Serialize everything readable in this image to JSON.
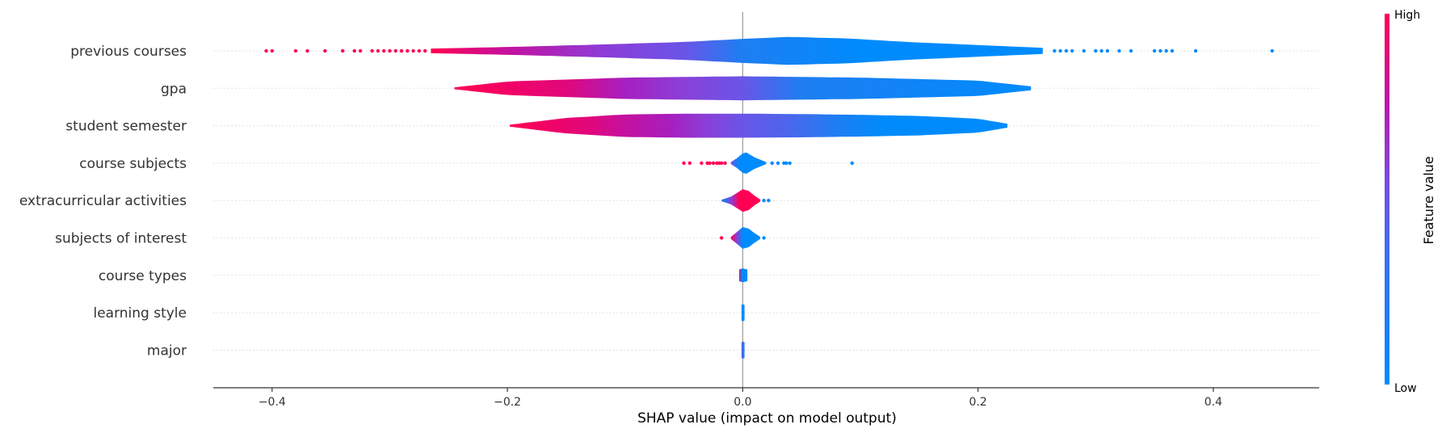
{
  "chart_data": {
    "type": "violin",
    "xlabel": "SHAP value (impact on model output)",
    "xlim": [
      -0.45,
      0.49
    ],
    "ticks": [
      {
        "value": -0.4,
        "label": "−0.4"
      },
      {
        "value": -0.2,
        "label": "−0.2"
      },
      {
        "value": 0.0,
        "label": "0.0"
      },
      {
        "value": 0.2,
        "label": "0.2"
      },
      {
        "value": 0.4,
        "label": "0.4"
      }
    ],
    "features": [
      {
        "name": "previous courses",
        "range": [
          -0.265,
          0.255
        ],
        "profile": [
          [
            -0.265,
            0.12
          ],
          [
            -0.2,
            0.2
          ],
          [
            -0.12,
            0.33
          ],
          [
            -0.05,
            0.46
          ],
          [
            0.0,
            0.62
          ],
          [
            0.04,
            0.72
          ],
          [
            0.09,
            0.64
          ],
          [
            0.14,
            0.46
          ],
          [
            0.2,
            0.3
          ],
          [
            0.255,
            0.16
          ]
        ],
        "colors": [
          [
            -0.265,
            "#ff0052"
          ],
          [
            -0.2,
            "#c4119f"
          ],
          [
            -0.12,
            "#8e3bd6"
          ],
          [
            -0.05,
            "#6a55e8"
          ],
          [
            0.0,
            "#1e7ef2"
          ],
          [
            0.1,
            "#008bfc"
          ],
          [
            0.255,
            "#008bfc"
          ]
        ],
        "outliers_low": [
          -0.405,
          -0.4,
          -0.38,
          -0.37,
          -0.355,
          -0.34,
          -0.33,
          -0.325,
          -0.315,
          -0.31,
          -0.305,
          -0.3,
          -0.295,
          -0.29,
          -0.285,
          -0.28,
          -0.275,
          -0.27
        ],
        "outliers_high": [
          0.265,
          0.27,
          0.275,
          0.28,
          0.29,
          0.3,
          0.305,
          0.31,
          0.32,
          0.33,
          0.35,
          0.355,
          0.36,
          0.365,
          0.385,
          0.45
        ]
      },
      {
        "name": "gpa",
        "range": [
          -0.245,
          0.245
        ],
        "profile": [
          [
            -0.245,
            0.05
          ],
          [
            -0.2,
            0.35
          ],
          [
            -0.1,
            0.55
          ],
          [
            0.0,
            0.62
          ],
          [
            0.1,
            0.55
          ],
          [
            0.2,
            0.4
          ],
          [
            0.245,
            0.1
          ]
        ],
        "colors": [
          [
            -0.245,
            "#ff0052"
          ],
          [
            -0.15,
            "#e1077c"
          ],
          [
            -0.1,
            "#a61fc0"
          ],
          [
            -0.05,
            "#8a40d8"
          ],
          [
            0.0,
            "#6a55e8"
          ],
          [
            0.05,
            "#1e7ef2"
          ],
          [
            0.245,
            "#008bfc"
          ]
        ],
        "outliers_low": [],
        "outliers_high": []
      },
      {
        "name": "student semester",
        "range": [
          -0.198,
          0.225
        ],
        "profile": [
          [
            -0.198,
            0.05
          ],
          [
            -0.15,
            0.4
          ],
          [
            -0.1,
            0.58
          ],
          [
            -0.05,
            0.62
          ],
          [
            0.0,
            0.62
          ],
          [
            0.05,
            0.6
          ],
          [
            0.1,
            0.56
          ],
          [
            0.15,
            0.5
          ],
          [
            0.2,
            0.36
          ],
          [
            0.225,
            0.1
          ]
        ],
        "colors": [
          [
            -0.198,
            "#ff0052"
          ],
          [
            -0.13,
            "#e1077c"
          ],
          [
            -0.1,
            "#c4119f"
          ],
          [
            -0.06,
            "#a61fc0"
          ],
          [
            -0.03,
            "#8a40d8"
          ],
          [
            0.0,
            "#6a55e8"
          ],
          [
            0.04,
            "#4a67ec"
          ],
          [
            0.08,
            "#1e7ef2"
          ],
          [
            0.12,
            "#008bfc"
          ],
          [
            0.225,
            "#008bfc"
          ]
        ],
        "outliers_low": [],
        "outliers_high": []
      },
      {
        "name": "course subjects",
        "range": [
          -0.01,
          0.02
        ],
        "profile": [
          [
            -0.01,
            0.05
          ],
          [
            -0.005,
            0.25
          ],
          [
            0.0,
            0.5
          ],
          [
            0.003,
            0.55
          ],
          [
            0.01,
            0.3
          ],
          [
            0.02,
            0.05
          ]
        ],
        "colors": [
          [
            -0.01,
            "#6a55e8"
          ],
          [
            -0.003,
            "#008bfc"
          ],
          [
            0.02,
            "#008bfc"
          ]
        ],
        "outliers_low": [
          -0.05,
          -0.045,
          -0.035,
          -0.03,
          -0.028,
          -0.025,
          -0.022,
          -0.02,
          -0.018,
          -0.015
        ],
        "outliers_high": [
          0.025,
          0.03,
          0.035,
          0.037,
          0.04,
          0.093
        ]
      },
      {
        "name": "extracurricular activities",
        "range": [
          -0.018,
          0.015
        ],
        "profile": [
          [
            -0.018,
            0.04
          ],
          [
            -0.01,
            0.2
          ],
          [
            0.0,
            0.58
          ],
          [
            0.005,
            0.5
          ],
          [
            0.01,
            0.25
          ],
          [
            0.015,
            0.05
          ]
        ],
        "colors": [
          [
            -0.018,
            "#008bfc"
          ],
          [
            -0.01,
            "#8a40d8"
          ],
          [
            -0.003,
            "#ff0052"
          ],
          [
            0.015,
            "#ff0052"
          ]
        ],
        "outliers_low": [],
        "outliers_high": [
          0.018,
          0.022
        ]
      },
      {
        "name": "subjects of interest",
        "range": [
          -0.01,
          0.015
        ],
        "profile": [
          [
            -0.01,
            0.05
          ],
          [
            -0.005,
            0.3
          ],
          [
            0.0,
            0.56
          ],
          [
            0.005,
            0.48
          ],
          [
            0.01,
            0.25
          ],
          [
            0.015,
            0.05
          ]
        ],
        "colors": [
          [
            -0.01,
            "#ff0052"
          ],
          [
            -0.005,
            "#8a40d8"
          ],
          [
            0.0,
            "#008bfc"
          ],
          [
            0.015,
            "#008bfc"
          ]
        ],
        "outliers_low": [
          -0.018
        ],
        "outliers_high": [
          0.018
        ]
      },
      {
        "name": "course types",
        "range": [
          -0.003,
          0.004
        ],
        "profile": [
          [
            -0.003,
            0.3
          ],
          [
            0.0,
            0.36
          ],
          [
            0.004,
            0.3
          ]
        ],
        "colors": [
          [
            -0.003,
            "#ff0052"
          ],
          [
            -0.001,
            "#008bfc"
          ],
          [
            0.004,
            "#008bfc"
          ]
        ],
        "outliers_low": [],
        "outliers_high": []
      },
      {
        "name": "learning style",
        "range": [
          -0.001,
          0.0015
        ],
        "profile": [
          [
            -0.001,
            0.4
          ],
          [
            0.0,
            0.45
          ],
          [
            0.0015,
            0.4
          ]
        ],
        "colors": [
          [
            -0.001,
            "#008bfc"
          ],
          [
            0.0015,
            "#008bfc"
          ]
        ],
        "outliers_low": [],
        "outliers_high": []
      },
      {
        "name": "major",
        "range": [
          -0.001,
          0.0015
        ],
        "profile": [
          [
            -0.001,
            0.4
          ],
          [
            0.0,
            0.45
          ],
          [
            0.0015,
            0.4
          ]
        ],
        "colors": [
          [
            -0.001,
            "#008bfc"
          ],
          [
            0.0,
            "#6a55e8"
          ],
          [
            0.0015,
            "#008bfc"
          ]
        ],
        "outliers_low": [],
        "outliers_high": []
      }
    ],
    "colorbar": {
      "title": "Feature value",
      "high_label": "High",
      "low_label": "Low",
      "high_color": "#ff0052",
      "low_color": "#008bfc"
    }
  }
}
